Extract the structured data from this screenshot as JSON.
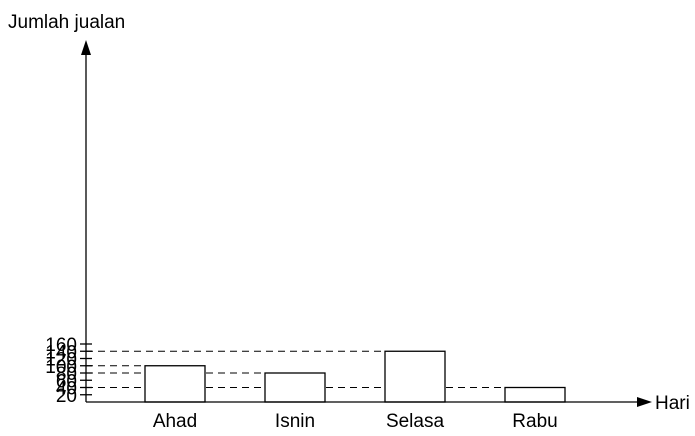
{
  "chart_data": {
    "type": "bar",
    "title": "",
    "ylabel": "Jumlah jualan",
    "xlabel": "Hari",
    "categories": [
      "Ahad",
      "Isnin",
      "Selasa",
      "Rabu"
    ],
    "values": [
      100,
      80,
      140,
      40
    ],
    "ylim": [
      0,
      160
    ],
    "yticks": [
      20,
      40,
      60,
      80,
      100,
      120,
      140,
      160
    ],
    "grid": false,
    "reference_lines": [
      140,
      100,
      80,
      40
    ],
    "bar_fill": "#ffffff",
    "bar_stroke": "#000000"
  }
}
